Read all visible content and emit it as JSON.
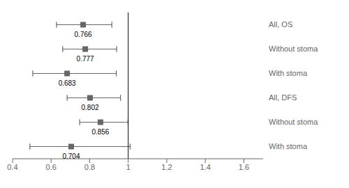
{
  "chart_data": {
    "type": "forest",
    "categories": [
      "All, OS",
      "Without stoma",
      "With stoma",
      "All, DFS",
      "Without stoma",
      "With stoma"
    ],
    "values": [
      0.766,
      0.777,
      0.683,
      0.802,
      0.856,
      0.704
    ],
    "ci_low": [
      0.628,
      0.66,
      0.505,
      0.683,
      0.748,
      0.49
    ],
    "ci_high": [
      0.915,
      0.94,
      0.938,
      0.96,
      0.999,
      1.01
    ],
    "xlim": [
      0.4,
      1.7
    ],
    "xticks": [
      0.4,
      0.6,
      0.8,
      1,
      1.2,
      1.4,
      1.6
    ],
    "reference_line": 1.0,
    "color": "#666666",
    "data_labels": true
  }
}
